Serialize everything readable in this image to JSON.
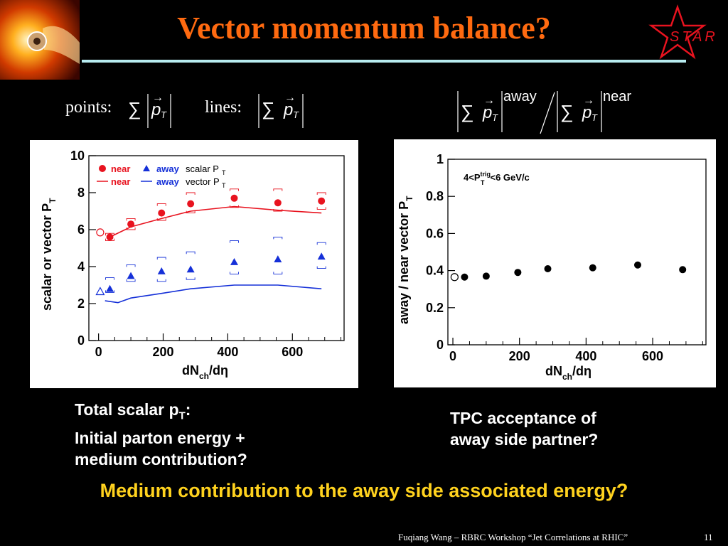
{
  "slide": {
    "title": "Vector momentum balance?",
    "footer": "Fuqiang Wang – RBRC Workshop “Jet Correlations at RHIC”",
    "page_number": "11",
    "logo_text": "STAR",
    "formula_points_label": "points:",
    "formula_lines_label": "lines:",
    "formula_away_label": "away",
    "formula_near_label": "near",
    "caption_left": [
      "Total scalar p",
      "T",
      ":",
      "Initial parton energy +",
      "medium contribution?"
    ],
    "caption_right": [
      "TPC acceptance of",
      "away side partner?"
    ],
    "question": "Medium contribution to the away side associated energy?",
    "colors": {
      "title": "#ff6a10",
      "question": "#ffd21e",
      "near": "#e8131f",
      "away": "#1530d8"
    }
  },
  "chart_data": [
    {
      "type": "scatter",
      "ylabel_main": "scalar or vector P",
      "ylabel_sub": "T",
      "xlabel_main": "dN",
      "xlabel_sub": "ch",
      "xlabel_tail": "/dη",
      "xlim": [
        -30,
        760
      ],
      "ylim": [
        0,
        10
      ],
      "xticks": [
        0,
        200,
        400,
        600
      ],
      "yticks": [
        0,
        2,
        4,
        6,
        8,
        10
      ],
      "legend": {
        "row1": [
          "near",
          "away",
          "scalar P",
          "T"
        ],
        "row2": [
          "near",
          "away",
          "vector P",
          "T"
        ]
      },
      "series": [
        {
          "name": "near",
          "kind": "points",
          "marker": "circle",
          "color": "#e8131f",
          "x": [
            35,
            100,
            195,
            285,
            420,
            555,
            690
          ],
          "y": [
            5.6,
            6.3,
            6.9,
            7.4,
            7.7,
            7.45,
            7.55
          ],
          "sys_lo": [
            5.4,
            6.0,
            6.5,
            6.9,
            7.2,
            7.0,
            7.1
          ],
          "sys_hi": [
            5.8,
            6.6,
            7.4,
            8.0,
            8.2,
            8.2,
            8.0
          ]
        },
        {
          "name": "away",
          "kind": "points",
          "marker": "triangle",
          "color": "#1530d8",
          "x": [
            35,
            100,
            195,
            285,
            420,
            555,
            690
          ],
          "y": [
            2.8,
            3.5,
            3.75,
            3.85,
            4.25,
            4.4,
            4.55
          ],
          "sys_lo": [
            2.6,
            3.2,
            3.2,
            3.3,
            3.6,
            3.6,
            3.9
          ],
          "sys_hi": [
            3.4,
            4.1,
            4.5,
            4.8,
            5.4,
            5.6,
            5.3
          ]
        },
        {
          "name": "near",
          "kind": "line",
          "color": "#e8131f",
          "x": [
            35,
            100,
            195,
            285,
            420,
            555,
            690
          ],
          "y": [
            5.6,
            6.15,
            6.6,
            7.0,
            7.25,
            7.05,
            6.9
          ]
        },
        {
          "name": "away",
          "kind": "line",
          "color": "#1530d8",
          "x": [
            20,
            60,
            100,
            195,
            285,
            420,
            555,
            690
          ],
          "y": [
            2.15,
            2.05,
            2.3,
            2.55,
            2.8,
            3.0,
            3.0,
            2.8
          ]
        },
        {
          "name": "near",
          "kind": "open",
          "marker": "circle",
          "color": "#e8131f",
          "x": [
            5
          ],
          "y": [
            5.85
          ]
        },
        {
          "name": "away",
          "kind": "open",
          "marker": "triangle",
          "color": "#1530d8",
          "x": [
            5
          ],
          "y": [
            2.65
          ]
        }
      ]
    },
    {
      "type": "scatter",
      "ylabel": "away / near vector P",
      "ylabel_sub": "T",
      "xlabel_main": "dN",
      "xlabel_sub": "ch",
      "xlabel_tail": "/dη",
      "annotation": {
        "pre": "4<P",
        "sup": "trig",
        "sub": "T",
        "post": "<6 GeV/c"
      },
      "xlim": [
        -15,
        760
      ],
      "ylim": [
        0,
        1
      ],
      "xticks": [
        0,
        200,
        400,
        600
      ],
      "yticks": [
        "0",
        "0.2",
        "0.4",
        "0.6",
        "0.8",
        "1"
      ],
      "series": [
        {
          "kind": "points",
          "color": "#000000",
          "x": [
            35,
            100,
            195,
            285,
            420,
            555,
            690
          ],
          "y": [
            0.365,
            0.37,
            0.39,
            0.41,
            0.415,
            0.43,
            0.405
          ]
        },
        {
          "kind": "open",
          "color": "#000000",
          "x": [
            5
          ],
          "y": [
            0.365
          ]
        }
      ]
    }
  ]
}
